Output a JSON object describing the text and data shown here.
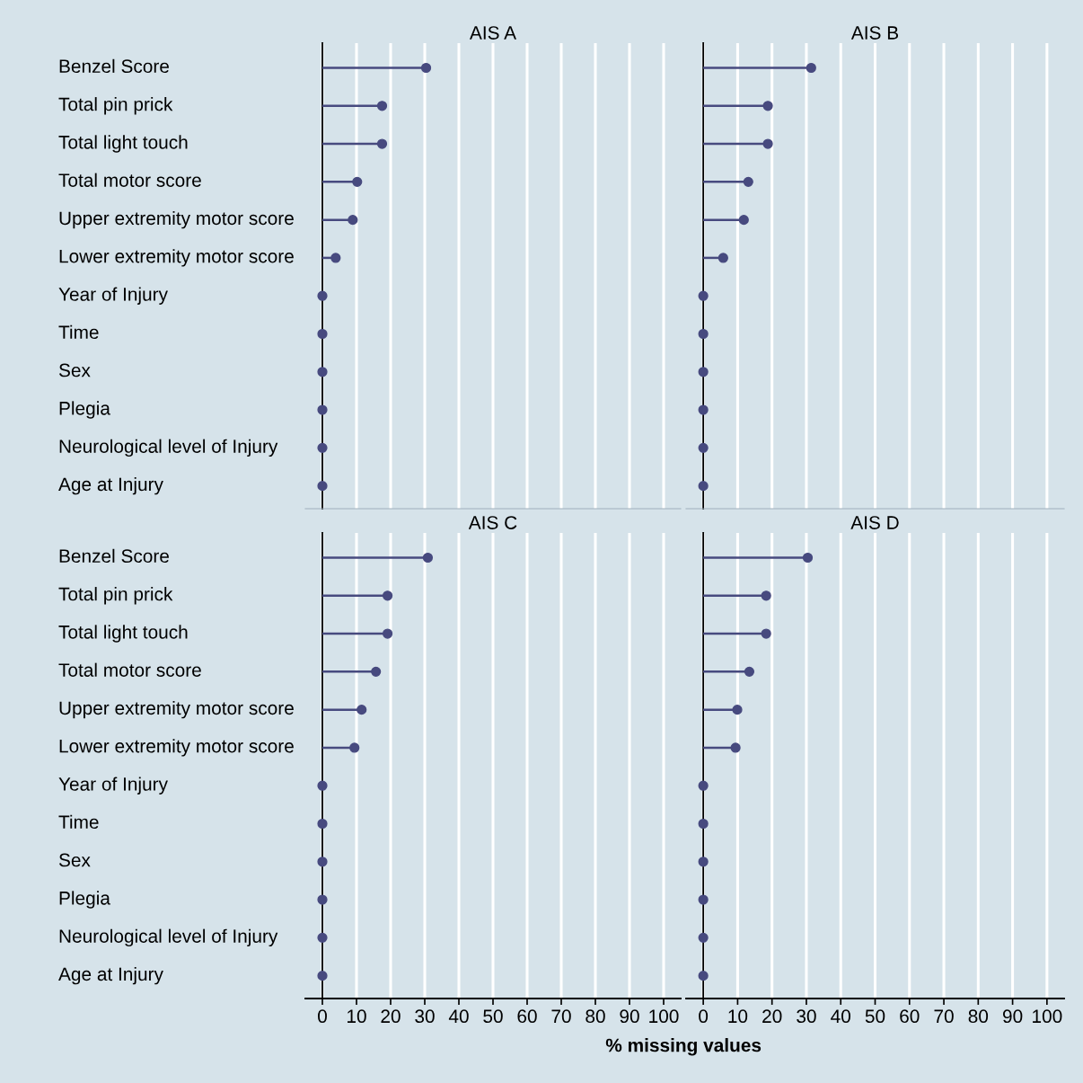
{
  "chart_data": [
    {
      "type": "lollipop",
      "orientation": "horizontal",
      "title": "AIS A",
      "categories": [
        "Benzel Score",
        "Total pin prick",
        "Total light touch",
        "Total motor score",
        "Upper extremity motor score",
        "Lower extremity motor score",
        "Year of Injury",
        "Time",
        "Sex",
        "Plegia",
        "Neurological level of Injury",
        "Age at Injury"
      ],
      "values": [
        30.4,
        17.5,
        17.5,
        10.2,
        8.9,
        3.9,
        0,
        0,
        0,
        0,
        0,
        0
      ],
      "color": "#474a7f",
      "xlim": [
        -5,
        105
      ],
      "xticks": [
        0,
        10,
        20,
        30,
        40,
        50,
        60,
        70,
        80,
        90,
        100
      ],
      "grid": "x",
      "tick_labels": "y"
    },
    {
      "type": "lollipop",
      "orientation": "horizontal",
      "title": "AIS B",
      "categories": [
        null,
        null,
        null,
        null,
        null,
        null,
        null,
        null,
        null,
        null,
        null,
        null
      ],
      "values": [
        31.4,
        18.8,
        18.8,
        13.1,
        11.8,
        5.8,
        0,
        0,
        0,
        0,
        0,
        0
      ],
      "color": "#474a7f",
      "xlim": [
        -5,
        105
      ],
      "xticks": [
        0,
        10,
        20,
        30,
        40,
        50,
        60,
        70,
        80,
        90,
        100
      ],
      "grid": "x",
      "tick_labels": false
    },
    {
      "type": "lollipop",
      "orientation": "horizontal",
      "title": "AIS C",
      "xlabel": "% missing values",
      "categories": [
        "Benzel Score",
        "Total pin prick",
        "Total light touch",
        "Total motor score",
        "Upper extremity motor score",
        "Lower extremity motor score",
        "Year of Injury",
        "Time",
        "Sex",
        "Plegia",
        "Neurological level of Injury",
        "Age at Injury"
      ],
      "values": [
        30.9,
        19.1,
        19.1,
        15.7,
        11.5,
        9.4,
        0,
        0,
        0,
        0,
        0,
        0
      ],
      "color": "#474a7f",
      "xlim": [
        -5,
        105
      ],
      "xticks": [
        0,
        10,
        20,
        30,
        40,
        50,
        60,
        70,
        80,
        90,
        100
      ],
      "grid": "x"
    },
    {
      "type": "lollipop",
      "orientation": "horizontal",
      "title": "AIS D",
      "categories": [
        null,
        null,
        null,
        null,
        null,
        null,
        null,
        null,
        null,
        null,
        null,
        null
      ],
      "values": [
        30.4,
        18.3,
        18.3,
        13.4,
        9.9,
        9.4,
        0,
        0,
        0,
        0,
        0,
        0
      ],
      "color": "#474a7f",
      "xlim": [
        -5,
        105
      ],
      "xticks": [
        0,
        10,
        20,
        30,
        40,
        50,
        60,
        70,
        80,
        90,
        100
      ],
      "grid": "x",
      "tick_labels": "x"
    }
  ]
}
